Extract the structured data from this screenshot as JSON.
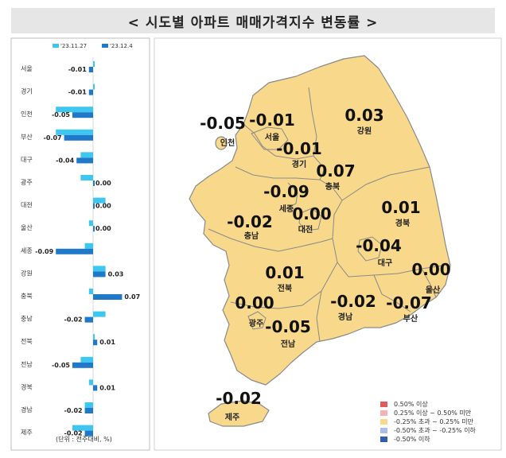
{
  "title": "< 시도별 아파트 매매가격지수 변동률 >",
  "unit_note": "(단위 : 전주대비, %)",
  "colors": {
    "prev_week": "#3cc6f0",
    "this_week": "#1f78c8",
    "map_fill": "#f8d88a",
    "map_stroke": "#8a8a8a"
  },
  "chart_data": {
    "type": "bar",
    "orientation": "horizontal",
    "legend_position": "top-left",
    "categories": [
      "서울",
      "경기",
      "인천",
      "부산",
      "대구",
      "광주",
      "대전",
      "울산",
      "세종",
      "강원",
      "충북",
      "충남",
      "전북",
      "전남",
      "경북",
      "경남",
      "제주"
    ],
    "series": [
      {
        "name": "'23.11.27",
        "values": [
          0.0,
          0.0,
          -0.09,
          -0.09,
          -0.03,
          -0.03,
          0.03,
          -0.01,
          -0.02,
          0.03,
          -0.01,
          0.03,
          0.0,
          -0.03,
          -0.01,
          -0.02,
          -0.05
        ]
      },
      {
        "name": "'23.12.4",
        "values": [
          -0.01,
          -0.01,
          -0.05,
          -0.07,
          -0.04,
          0.0,
          0.0,
          0.0,
          -0.09,
          0.03,
          0.07,
          -0.02,
          0.01,
          -0.05,
          0.01,
          -0.02,
          -0.02
        ]
      }
    ],
    "data_labels": [
      "-0.01",
      "-0.01",
      "-0.05",
      "-0.07",
      "-0.04",
      "0.00",
      "0.00",
      "0.00",
      "-0.09",
      "0.03",
      "0.07",
      "-0.02",
      "0.01",
      "-0.05",
      "0.01",
      "-0.02",
      "-0.02"
    ]
  },
  "map_data": {
    "type": "choropleth",
    "regions": [
      {
        "name": "인천",
        "value": "-0.05"
      },
      {
        "name": "서울",
        "value": "-0.01"
      },
      {
        "name": "강원",
        "value": "0.03"
      },
      {
        "name": "경기",
        "value": "-0.01"
      },
      {
        "name": "충북",
        "value": "0.07"
      },
      {
        "name": "세종",
        "value": "-0.09"
      },
      {
        "name": "대전",
        "value": "0.00"
      },
      {
        "name": "충남",
        "value": "-0.02"
      },
      {
        "name": "경북",
        "value": "0.01"
      },
      {
        "name": "대구",
        "value": "-0.04"
      },
      {
        "name": "전북",
        "value": "0.01"
      },
      {
        "name": "울산",
        "value": "0.00"
      },
      {
        "name": "광주",
        "value": "0.00"
      },
      {
        "name": "경남",
        "value": "-0.02"
      },
      {
        "name": "부산",
        "value": "-0.07"
      },
      {
        "name": "전남",
        "value": "-0.05"
      },
      {
        "name": "제주",
        "value": "-0.02"
      }
    ],
    "legend": [
      {
        "label": "0.50% 이상",
        "color": "#e05c5c"
      },
      {
        "label": "0.25% 이상 ~ 0.50% 미만",
        "color": "#f3b3b3"
      },
      {
        "label": "-0.25% 초과 ~ 0.25% 미만",
        "color": "#f8d88a"
      },
      {
        "label": "-0.50% 초과 ~ -0.25% 이하",
        "color": "#aabfe2"
      },
      {
        "label": "-0.50% 이하",
        "color": "#2f5faf"
      }
    ]
  }
}
